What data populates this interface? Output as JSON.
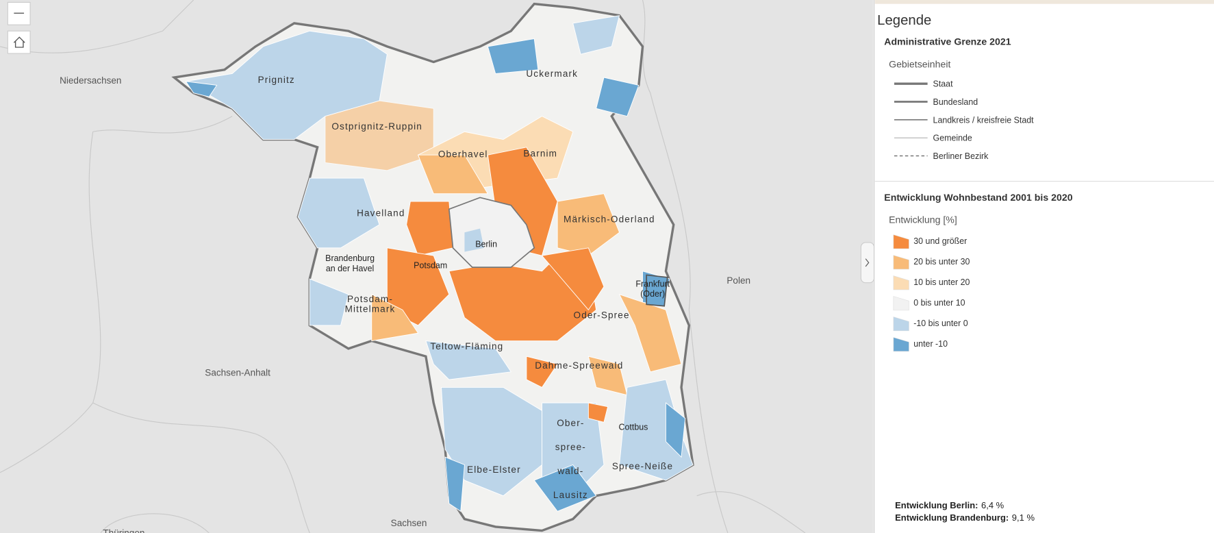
{
  "map": {
    "neighbors": [
      "Niedersachsen",
      "Sachsen-Anhalt",
      "Sachsen",
      "Thüringen",
      "Polen"
    ],
    "districts": [
      {
        "lines": [
          "Prignitz"
        ]
      },
      {
        "lines": [
          "Ostprignitz-Ruppin"
        ]
      },
      {
        "lines": [
          "Uckermark"
        ]
      },
      {
        "lines": [
          "Oberhavel"
        ]
      },
      {
        "lines": [
          "Barnim"
        ]
      },
      {
        "lines": [
          "Havelland"
        ]
      },
      {
        "lines": [
          "Märkisch-Oderland"
        ]
      },
      {
        "lines": [
          "Berlin"
        ]
      },
      {
        "lines": [
          "Potsdam"
        ]
      },
      {
        "lines": [
          "Brandenburg",
          "an der Havel"
        ]
      },
      {
        "lines": [
          "Frankfurt",
          "(Oder)"
        ]
      },
      {
        "lines": [
          "Potsdam-",
          "Mittelmark"
        ]
      },
      {
        "lines": [
          "Oder-Spree"
        ]
      },
      {
        "lines": [
          "Teltow-Fläming"
        ]
      },
      {
        "lines": [
          "Dahme-Spreewald"
        ]
      },
      {
        "lines": [
          "Elbe-Elster"
        ]
      },
      {
        "lines": [
          "Ober-",
          "spree-",
          "wald-",
          "Lausitz"
        ]
      },
      {
        "lines": [
          "Cottbus"
        ]
      },
      {
        "lines": [
          "Spree-Neiße"
        ]
      }
    ]
  },
  "legend": {
    "title": "Legende",
    "boundaries": {
      "title": "Administrative Grenze 2021",
      "subtitle": "Gebietseinheit",
      "items": [
        "Staat",
        "Bundesland",
        "Landkreis / kreisfreie Stadt",
        "Gemeinde",
        "Berliner Bezirk"
      ]
    },
    "classes": {
      "title": "Entwicklung Wohnbestand 2001 bis 2020",
      "subtitle": "Entwicklung [%]",
      "items": [
        {
          "label": "30 und größer",
          "color": "#f58b3e"
        },
        {
          "label": "20 bis unter 30",
          "color": "#f8bb78"
        },
        {
          "label": "10 bis unter 20",
          "color": "#fbdcb4"
        },
        {
          "label": "0 bis unter 10",
          "color": "#f2f2f2"
        },
        {
          "label": "-10 bis unter 0",
          "color": "#bcd5e9"
        },
        {
          "label": "unter -10",
          "color": "#6aa7d2"
        }
      ]
    }
  },
  "footer": [
    {
      "label": "Entwicklung Berlin:",
      "value": "6,4 %"
    },
    {
      "label": "Entwicklung Brandenburg:",
      "value": "9,1 %"
    }
  ]
}
